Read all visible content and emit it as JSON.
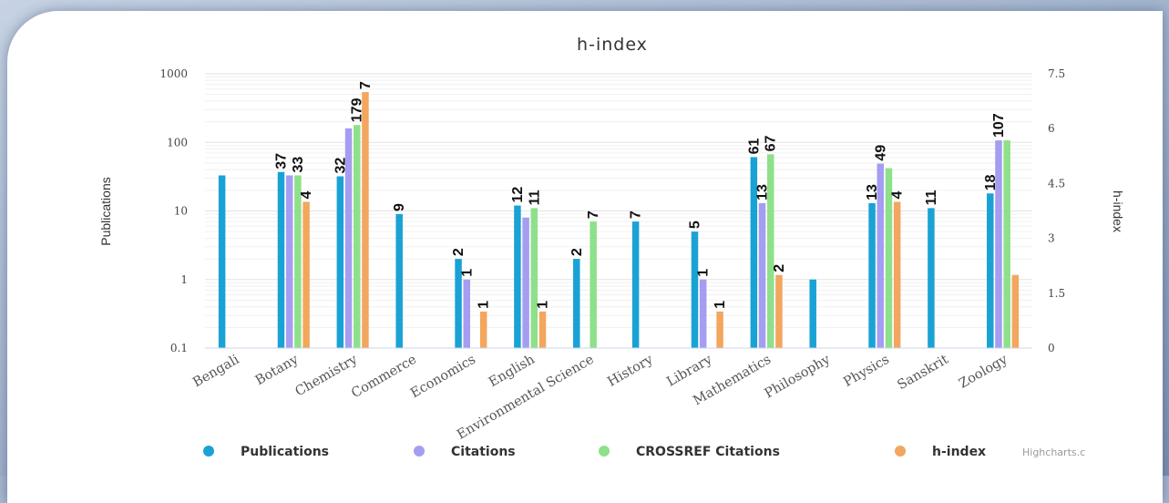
{
  "chart_data": {
    "type": "bar",
    "title": "h-index",
    "credit": "Highcharts.c",
    "y_left": {
      "label": "Publications",
      "scale": "log",
      "ticks": [
        "0.1",
        "1",
        "10",
        "100",
        "1000"
      ],
      "range": [
        0.1,
        1000
      ]
    },
    "y_right": {
      "label": "h-index",
      "scale": "linear",
      "ticks": [
        "0",
        "1.5",
        "3",
        "4.5",
        "6",
        "7.5"
      ],
      "range": [
        0,
        7.5
      ]
    },
    "grid": true,
    "legend_position": "bottom-center",
    "categories": [
      "Bengali",
      "Botany",
      "Chemistry",
      "Commerce",
      "Economics",
      "English",
      "Environmental Science",
      "History",
      "Library",
      "Mathematics",
      "Philosophy",
      "Physics",
      "Sanskrit",
      "Zoology"
    ],
    "series": [
      {
        "name": "Publications",
        "color": "#1aa2d5",
        "axis": "left",
        "values": [
          33,
          37,
          32,
          9,
          2,
          12,
          2,
          7,
          5,
          61,
          1,
          13,
          11,
          18
        ],
        "labels": [
          "",
          "37",
          "32",
          "9",
          "2",
          "12",
          "2",
          "7",
          "5",
          "61",
          "",
          "13",
          "11",
          "18"
        ]
      },
      {
        "name": "Citations",
        "color": "#a59df2",
        "axis": "left",
        "values": [
          null,
          33,
          160,
          null,
          1,
          8,
          null,
          null,
          1,
          13,
          null,
          49,
          null,
          107
        ],
        "labels": [
          "",
          "",
          "",
          "",
          "1",
          "",
          "",
          "",
          "1",
          "13",
          "",
          "49",
          "",
          "107"
        ]
      },
      {
        "name": "CROSSREF Citations",
        "color": "#8ee08a",
        "axis": "left",
        "values": [
          null,
          33,
          179,
          null,
          null,
          11,
          7,
          null,
          null,
          67,
          null,
          42,
          null,
          107
        ],
        "labels": [
          "",
          "33",
          "179",
          "",
          "",
          "11",
          "7",
          "",
          "",
          "67",
          "",
          "",
          "",
          ""
        ]
      },
      {
        "name": "h-index",
        "color": "#f3a65e",
        "axis": "right",
        "values": [
          null,
          4,
          7,
          null,
          1,
          1,
          null,
          null,
          1,
          2,
          null,
          4,
          null,
          2
        ],
        "labels": [
          "",
          "4",
          "7",
          "",
          "1",
          "1",
          "",
          "",
          "1",
          "2",
          "",
          "4",
          "",
          ""
        ]
      }
    ]
  }
}
